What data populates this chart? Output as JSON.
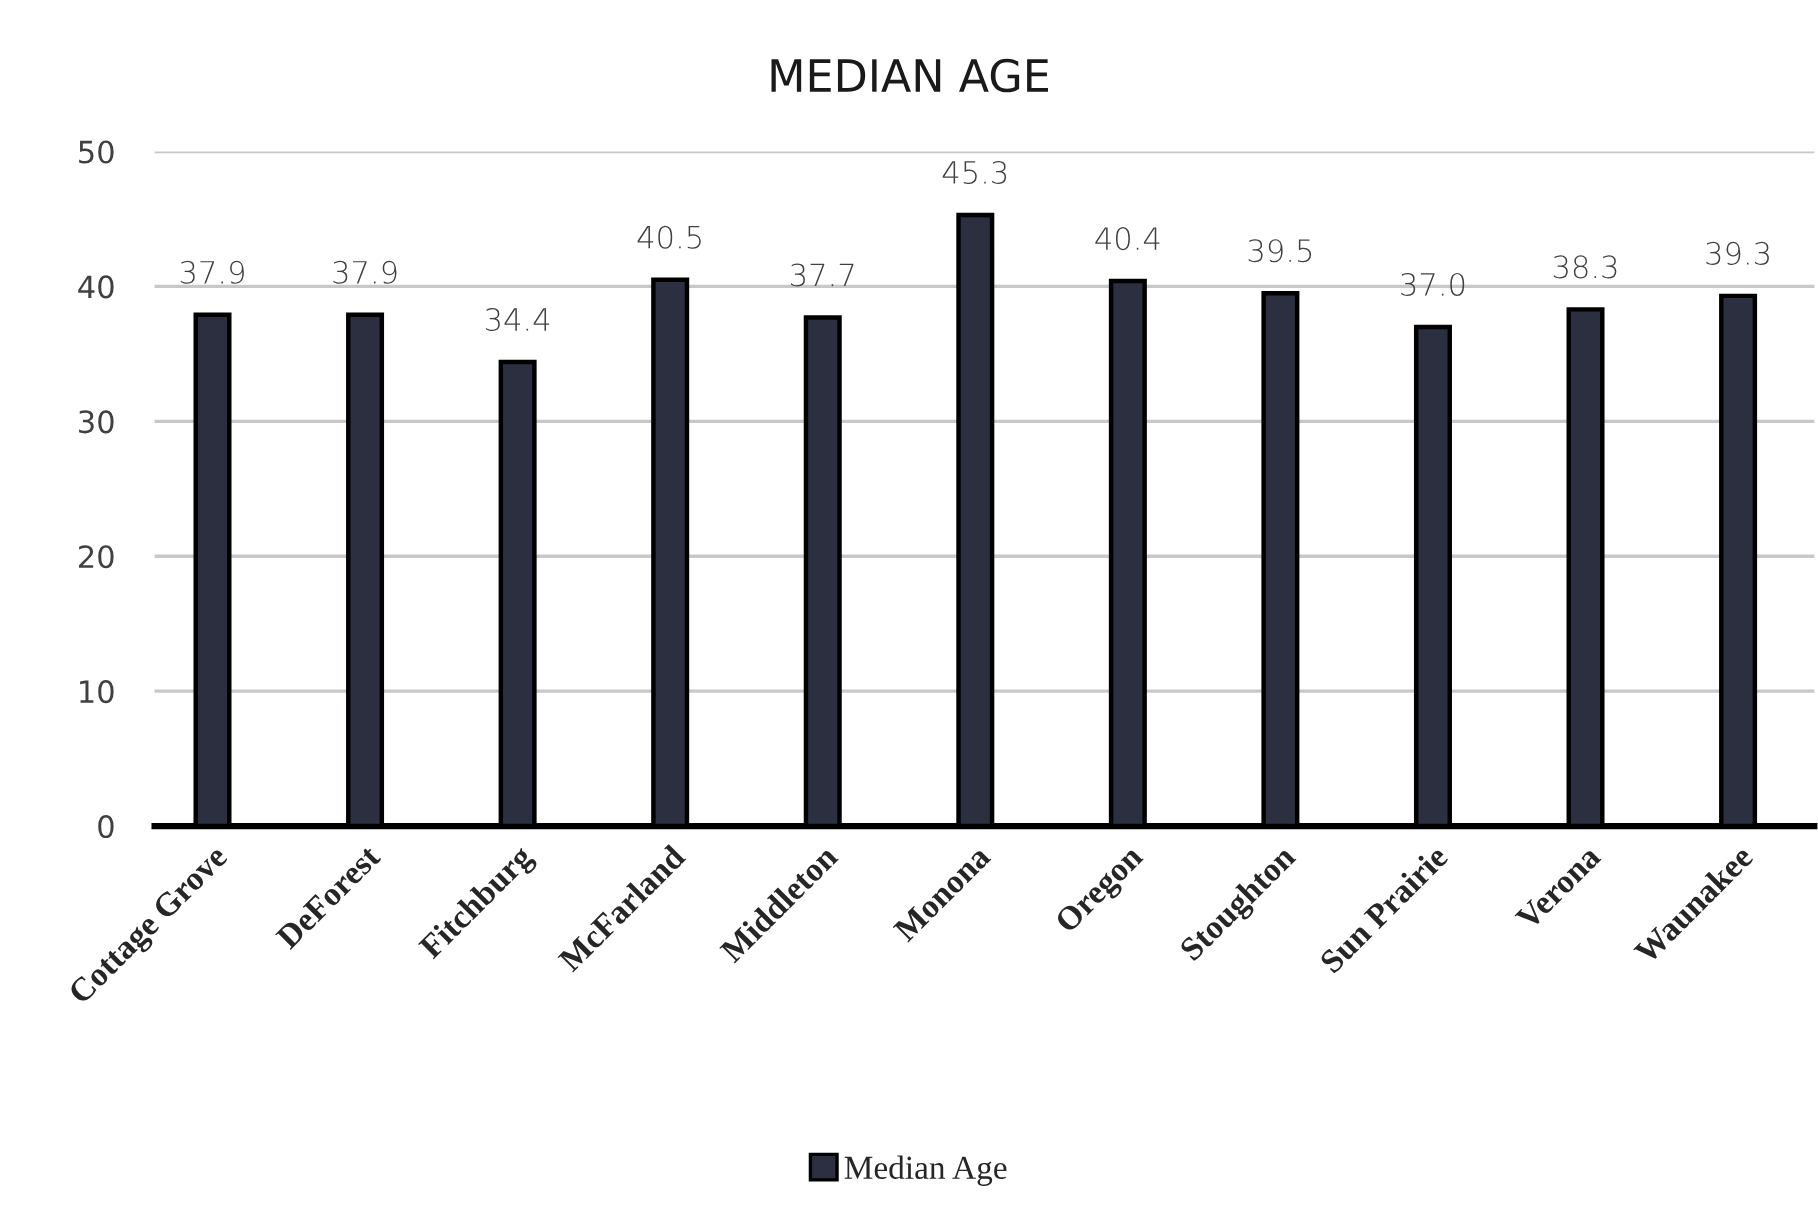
{
  "chart_data": {
    "type": "bar",
    "title": "MEDIAN AGE",
    "categories": [
      "Cottage Grove",
      "DeForest",
      "Fitchburg",
      "McFarland",
      "Middleton",
      "Monona",
      "Oregon",
      "Stoughton",
      "Sun Prairie",
      "Verona",
      "Waunakee"
    ],
    "series": [
      {
        "name": "Median Age",
        "color": "#2b2f40",
        "values": [
          37.9,
          37.9,
          34.4,
          40.5,
          37.7,
          45.3,
          40.4,
          39.5,
          37.0,
          38.3,
          39.3
        ],
        "value_labels": [
          "37.9",
          "37.9",
          "34.4",
          "40.5",
          "37.7",
          "45.3",
          "40.4",
          "39.5",
          "37.0",
          "38.3",
          "39.3"
        ]
      }
    ],
    "ylim": [
      0,
      50
    ],
    "yticks": [
      0,
      10,
      20,
      30,
      40,
      50
    ],
    "grid": "y",
    "legend": "bottom"
  }
}
